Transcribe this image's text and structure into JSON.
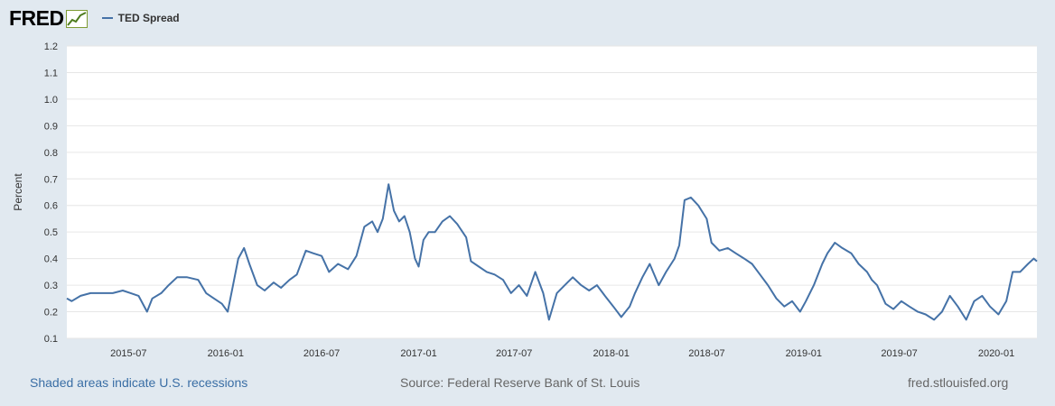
{
  "header": {
    "logo_text": "FRED",
    "logo_icon": "line-graph-icon",
    "legend_label": "TED Spread"
  },
  "colors": {
    "series": "#4572a7",
    "plot_background": "#ffffff",
    "page_background": "#e1e9f0",
    "grid": "#e6e6e6"
  },
  "footer": {
    "recession_note": "Shaded areas indicate U.S. recessions",
    "source": "Source: Federal Reserve Bank of St. Louis",
    "site": "fred.stlouisfed.org"
  },
  "chart_data": {
    "type": "line",
    "title": "",
    "xlabel": "",
    "ylabel": "Percent",
    "ylim": [
      0.1,
      1.2
    ],
    "xlim": [
      "2015-03-06",
      "2020-03-18"
    ],
    "grid": true,
    "legend_position": "top-left",
    "y_ticks": [
      "0.1",
      "0.2",
      "0.3",
      "0.4",
      "0.5",
      "0.6",
      "0.7",
      "0.8",
      "0.9",
      "1.0",
      "1.1",
      "1.2"
    ],
    "x_ticks": [
      "2015-07",
      "2016-01",
      "2016-07",
      "2017-01",
      "2017-07",
      "2018-01",
      "2018-07",
      "2019-01",
      "2019-07",
      "2020-01"
    ],
    "series": [
      {
        "name": "TED Spread",
        "points": [
          [
            "2015-03-06",
            0.25
          ],
          [
            "2015-03-15",
            0.24
          ],
          [
            "2015-04-01",
            0.26
          ],
          [
            "2015-04-20",
            0.27
          ],
          [
            "2015-05-10",
            0.27
          ],
          [
            "2015-06-01",
            0.27
          ],
          [
            "2015-06-20",
            0.28
          ],
          [
            "2015-07-05",
            0.27
          ],
          [
            "2015-07-20",
            0.26
          ],
          [
            "2015-08-05",
            0.2
          ],
          [
            "2015-08-15",
            0.25
          ],
          [
            "2015-09-01",
            0.27
          ],
          [
            "2015-09-15",
            0.3
          ],
          [
            "2015-10-01",
            0.33
          ],
          [
            "2015-10-20",
            0.33
          ],
          [
            "2015-11-10",
            0.32
          ],
          [
            "2015-11-25",
            0.27
          ],
          [
            "2015-12-10",
            0.25
          ],
          [
            "2015-12-25",
            0.23
          ],
          [
            "2016-01-05",
            0.2
          ],
          [
            "2016-01-15",
            0.3
          ],
          [
            "2016-01-25",
            0.4
          ],
          [
            "2016-02-05",
            0.44
          ],
          [
            "2016-02-15",
            0.38
          ],
          [
            "2016-03-01",
            0.3
          ],
          [
            "2016-03-15",
            0.28
          ],
          [
            "2016-04-01",
            0.31
          ],
          [
            "2016-04-15",
            0.29
          ],
          [
            "2016-05-01",
            0.32
          ],
          [
            "2016-05-15",
            0.34
          ],
          [
            "2016-06-01",
            0.43
          ],
          [
            "2016-06-15",
            0.42
          ],
          [
            "2016-07-01",
            0.41
          ],
          [
            "2016-07-15",
            0.35
          ],
          [
            "2016-08-01",
            0.38
          ],
          [
            "2016-08-20",
            0.36
          ],
          [
            "2016-09-05",
            0.41
          ],
          [
            "2016-09-20",
            0.52
          ],
          [
            "2016-10-05",
            0.54
          ],
          [
            "2016-10-15",
            0.5
          ],
          [
            "2016-10-25",
            0.55
          ],
          [
            "2016-11-05",
            0.68
          ],
          [
            "2016-11-15",
            0.58
          ],
          [
            "2016-11-25",
            0.54
          ],
          [
            "2016-12-05",
            0.56
          ],
          [
            "2016-12-15",
            0.5
          ],
          [
            "2016-12-25",
            0.4
          ],
          [
            "2017-01-01",
            0.37
          ],
          [
            "2017-01-10",
            0.47
          ],
          [
            "2017-01-20",
            0.5
          ],
          [
            "2017-02-01",
            0.5
          ],
          [
            "2017-02-15",
            0.54
          ],
          [
            "2017-03-01",
            0.56
          ],
          [
            "2017-03-15",
            0.53
          ],
          [
            "2017-04-01",
            0.48
          ],
          [
            "2017-04-10",
            0.39
          ],
          [
            "2017-04-25",
            0.37
          ],
          [
            "2017-05-10",
            0.35
          ],
          [
            "2017-05-25",
            0.34
          ],
          [
            "2017-06-10",
            0.32
          ],
          [
            "2017-06-25",
            0.27
          ],
          [
            "2017-07-10",
            0.3
          ],
          [
            "2017-07-25",
            0.26
          ],
          [
            "2017-08-10",
            0.35
          ],
          [
            "2017-08-25",
            0.27
          ],
          [
            "2017-09-05",
            0.17
          ],
          [
            "2017-09-20",
            0.27
          ],
          [
            "2017-10-05",
            0.3
          ],
          [
            "2017-10-20",
            0.33
          ],
          [
            "2017-11-05",
            0.3
          ],
          [
            "2017-11-20",
            0.28
          ],
          [
            "2017-12-05",
            0.3
          ],
          [
            "2017-12-20",
            0.26
          ],
          [
            "2018-01-05",
            0.22
          ],
          [
            "2018-01-20",
            0.18
          ],
          [
            "2018-02-05",
            0.22
          ],
          [
            "2018-02-15",
            0.27
          ],
          [
            "2018-03-01",
            0.33
          ],
          [
            "2018-03-15",
            0.38
          ],
          [
            "2018-04-01",
            0.3
          ],
          [
            "2018-04-15",
            0.35
          ],
          [
            "2018-05-01",
            0.4
          ],
          [
            "2018-05-10",
            0.45
          ],
          [
            "2018-05-20",
            0.62
          ],
          [
            "2018-06-01",
            0.63
          ],
          [
            "2018-06-15",
            0.6
          ],
          [
            "2018-07-01",
            0.55
          ],
          [
            "2018-07-10",
            0.46
          ],
          [
            "2018-07-25",
            0.43
          ],
          [
            "2018-08-10",
            0.44
          ],
          [
            "2018-08-25",
            0.42
          ],
          [
            "2018-09-10",
            0.4
          ],
          [
            "2018-09-25",
            0.38
          ],
          [
            "2018-10-10",
            0.34
          ],
          [
            "2018-10-25",
            0.3
          ],
          [
            "2018-11-10",
            0.25
          ],
          [
            "2018-11-25",
            0.22
          ],
          [
            "2018-12-10",
            0.24
          ],
          [
            "2018-12-25",
            0.2
          ],
          [
            "2019-01-05",
            0.24
          ],
          [
            "2019-01-20",
            0.3
          ],
          [
            "2019-02-05",
            0.38
          ],
          [
            "2019-02-15",
            0.42
          ],
          [
            "2019-03-01",
            0.46
          ],
          [
            "2019-03-15",
            0.44
          ],
          [
            "2019-04-01",
            0.42
          ],
          [
            "2019-04-15",
            0.38
          ],
          [
            "2019-05-01",
            0.35
          ],
          [
            "2019-05-10",
            0.32
          ],
          [
            "2019-05-20",
            0.3
          ],
          [
            "2019-06-05",
            0.23
          ],
          [
            "2019-06-20",
            0.21
          ],
          [
            "2019-07-05",
            0.24
          ],
          [
            "2019-07-20",
            0.22
          ],
          [
            "2019-08-05",
            0.2
          ],
          [
            "2019-08-20",
            0.19
          ],
          [
            "2019-09-05",
            0.17
          ],
          [
            "2019-09-20",
            0.2
          ],
          [
            "2019-10-05",
            0.26
          ],
          [
            "2019-10-20",
            0.22
          ],
          [
            "2019-11-05",
            0.17
          ],
          [
            "2019-11-20",
            0.24
          ],
          [
            "2019-12-05",
            0.26
          ],
          [
            "2019-12-20",
            0.22
          ],
          [
            "2020-01-05",
            0.19
          ],
          [
            "2020-01-20",
            0.24
          ],
          [
            "2020-02-01",
            0.35
          ],
          [
            "2020-02-15",
            0.35
          ],
          [
            "2020-03-01",
            0.38
          ],
          [
            "2020-03-12",
            0.4
          ],
          [
            "2020-03-18",
            0.39
          ]
        ]
      }
    ]
  }
}
